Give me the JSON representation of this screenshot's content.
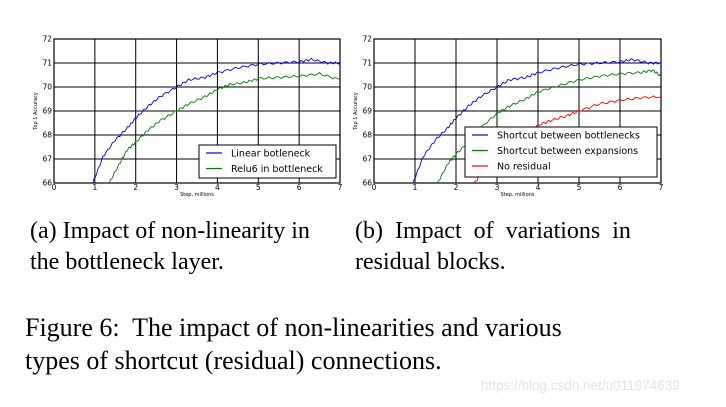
{
  "chart_data": [
    {
      "type": "line",
      "panel": "a",
      "xlabel": "Step, millions",
      "ylabel": "Top 1 Accuracy",
      "xlim": [
        0,
        7
      ],
      "ylim": [
        66,
        72
      ],
      "xticks": [
        0,
        1,
        2,
        3,
        4,
        5,
        6,
        7
      ],
      "yticks": [
        66,
        67,
        68,
        69,
        70,
        71,
        72
      ],
      "grid": true,
      "legend_position": "lower right",
      "series": [
        {
          "name": "Linear botleneck",
          "color": "#0000ff",
          "x": [
            0.95,
            1.2,
            1.5,
            1.8,
            2.0,
            2.3,
            2.6,
            3.0,
            3.3,
            3.7,
            4.0,
            4.5,
            5.0,
            5.5,
            6.0,
            6.3,
            6.7,
            7.0
          ],
          "y": [
            66.0,
            67.1,
            67.8,
            68.3,
            68.7,
            69.2,
            69.6,
            70.0,
            70.3,
            70.4,
            70.6,
            70.8,
            70.95,
            71.0,
            71.05,
            71.15,
            71.0,
            71.0
          ]
        },
        {
          "name": "Relu6 in bottleneck",
          "color": "#008000",
          "x": [
            1.35,
            1.6,
            1.8,
            2.0,
            2.3,
            2.6,
            3.0,
            3.3,
            3.7,
            4.0,
            4.3,
            4.7,
            5.0,
            5.5,
            6.0,
            6.5,
            7.0
          ],
          "y": [
            66.0,
            66.8,
            67.4,
            67.7,
            68.2,
            68.6,
            69.0,
            69.3,
            69.6,
            69.9,
            70.1,
            70.2,
            70.35,
            70.4,
            70.45,
            70.55,
            70.3
          ]
        }
      ]
    },
    {
      "type": "line",
      "panel": "b",
      "xlabel": "Step, millions",
      "ylabel": "Top 1 Accuracy",
      "xlim": [
        0,
        7
      ],
      "ylim": [
        66,
        72
      ],
      "xticks": [
        0,
        1,
        2,
        3,
        4,
        5,
        6,
        7
      ],
      "yticks": [
        66,
        67,
        68,
        69,
        70,
        71,
        72
      ],
      "grid": true,
      "legend_position": "lower right",
      "series": [
        {
          "name": "Shortcut between bottlenecks",
          "color": "#0000ff",
          "x": [
            0.95,
            1.2,
            1.5,
            1.8,
            2.0,
            2.3,
            2.6,
            3.0,
            3.3,
            3.7,
            4.0,
            4.5,
            5.0,
            5.5,
            6.0,
            6.3,
            6.7,
            7.0
          ],
          "y": [
            66.0,
            67.1,
            67.8,
            68.3,
            68.7,
            69.2,
            69.6,
            70.0,
            70.3,
            70.4,
            70.6,
            70.8,
            70.95,
            71.0,
            71.05,
            71.15,
            71.0,
            71.0
          ]
        },
        {
          "name": "Shortcut between expansions",
          "color": "#008000",
          "x": [
            1.55,
            1.8,
            2.0,
            2.3,
            2.6,
            3.0,
            3.3,
            3.7,
            4.0,
            4.5,
            5.0,
            5.5,
            6.0,
            6.5,
            6.8,
            7.0
          ],
          "y": [
            66.0,
            66.8,
            67.2,
            67.7,
            68.3,
            68.9,
            69.2,
            69.5,
            69.8,
            70.05,
            70.3,
            70.45,
            70.55,
            70.6,
            70.7,
            70.45
          ]
        },
        {
          "name": "No residual",
          "color": "#ff0000",
          "x": [
            2.45,
            2.7,
            3.0,
            3.3,
            3.6,
            4.0,
            4.3,
            4.7,
            5.0,
            5.5,
            6.0,
            6.5,
            7.0
          ],
          "y": [
            66.0,
            66.6,
            67.3,
            67.8,
            68.1,
            68.4,
            68.6,
            68.8,
            69.0,
            69.3,
            69.45,
            69.55,
            69.6
          ]
        }
      ]
    }
  ],
  "captions": {
    "a_line1": "(a) Impact of non-linearity in",
    "a_line2": "the bottleneck layer.",
    "b_line1": "(b)  Impact  of  variations  in",
    "b_line2": "residual blocks.",
    "figure_line1": "Figure 6:  The impact of non-linearities and various",
    "figure_line2": "types of shortcut (residual) connections."
  },
  "watermark": "https://blog.csdn.net/u011974639"
}
